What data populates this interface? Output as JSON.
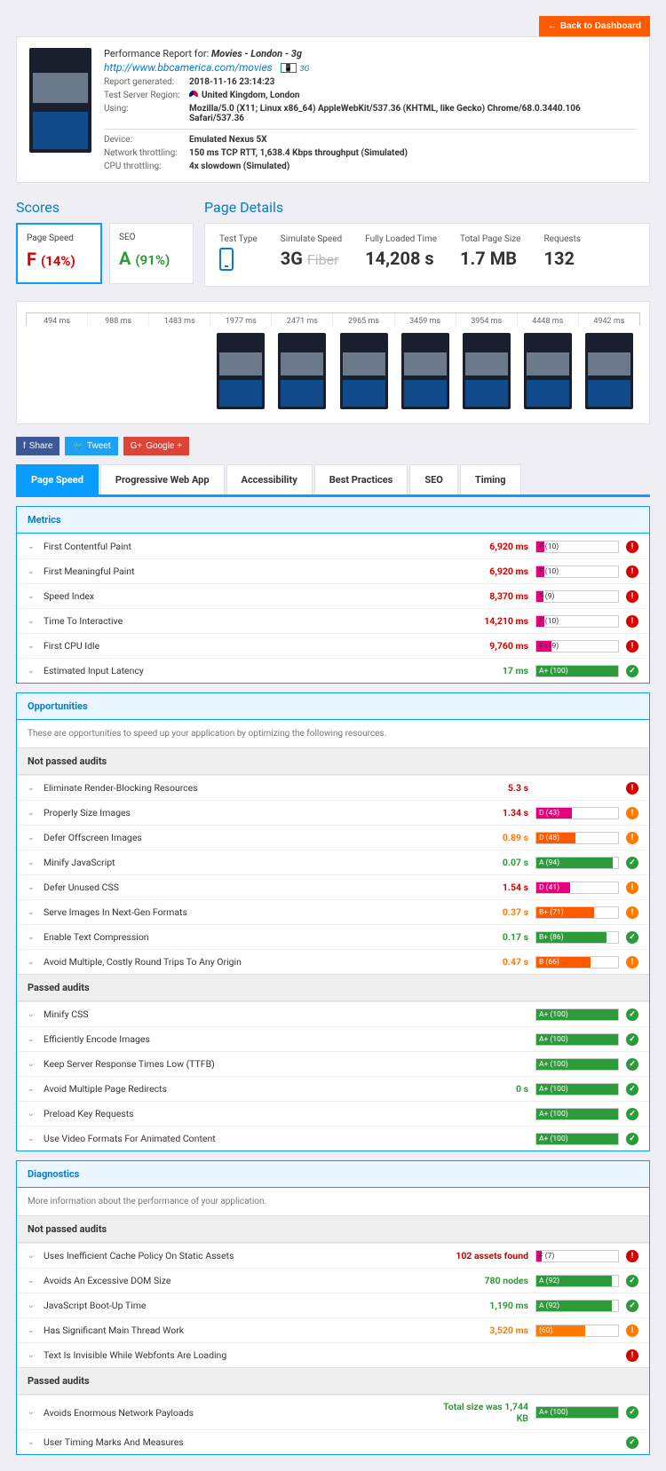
{
  "back_button": "Back to Dashboard",
  "header": {
    "title_prefix": "Performance Report for:",
    "title_name": "Movies - London - 3g",
    "url": "http://www.bbcamerica.com/movies",
    "net_badge": "3G",
    "rows1": [
      {
        "k": "Report generated:",
        "v": "2018-11-16 23:14:23"
      },
      {
        "k": "Test Server Region:",
        "v": "United Kingdom, London",
        "flag": true
      },
      {
        "k": "Using:",
        "v": "Mozilla/5.0 (X11; Linux x86_64) AppleWebKit/537.36 (KHTML, like Gecko) Chrome/68.0.3440.106 Safari/537.36"
      }
    ],
    "rows2": [
      {
        "k": "Device:",
        "v": "Emulated Nexus 5X"
      },
      {
        "k": "Network throttling:",
        "v": "150 ms TCP RTT, 1,638.4 Kbps throughput (Simulated)"
      },
      {
        "k": "CPU throttling:",
        "v": "4x slowdown (Simulated)"
      }
    ]
  },
  "scores": {
    "heading": "Scores",
    "items": [
      {
        "label": "Page Speed",
        "grade": "F",
        "pct": "(14%)",
        "cls": "grade-F",
        "active": true
      },
      {
        "label": "SEO",
        "grade": "A",
        "pct": "(91%)",
        "cls": "grade-A",
        "active": false
      }
    ]
  },
  "details": {
    "heading": "Page Details",
    "items": [
      {
        "label": "Test Type",
        "type": "phone"
      },
      {
        "label": "Simulate Speed",
        "value": "3G",
        "strike": "Fiber"
      },
      {
        "label": "Fully Loaded Time",
        "value": "14,208 s"
      },
      {
        "label": "Total Page Size",
        "value": "1.7 MB"
      },
      {
        "label": "Requests",
        "value": "132"
      }
    ]
  },
  "filmstrip": {
    "times": [
      "494 ms",
      "988 ms",
      "1483 ms",
      "1977 ms",
      "2471 ms",
      "2965 ms",
      "3459 ms",
      "3954 ms",
      "4448 ms",
      "4942 ms"
    ],
    "frames": [
      false,
      false,
      false,
      true,
      true,
      true,
      true,
      true,
      true,
      true
    ]
  },
  "social": {
    "share": "Share",
    "tweet": "Tweet",
    "google": "Google +"
  },
  "tabs": [
    "Page Speed",
    "Progressive Web App",
    "Accessibility",
    "Best Practices",
    "SEO",
    "Timing"
  ],
  "active_tab": 0,
  "metrics": {
    "title": "Metrics",
    "rows": [
      {
        "name": "First Contentful Paint",
        "val": "6,920 ms",
        "vcls": "val-red",
        "bar": {
          "label": "F (10)",
          "pct": 10,
          "color": "#e6007e"
        },
        "icon": "warn"
      },
      {
        "name": "First Meaningful Paint",
        "val": "6,920 ms",
        "vcls": "val-red",
        "bar": {
          "label": "F (10)",
          "pct": 10,
          "color": "#e6007e"
        },
        "icon": "warn"
      },
      {
        "name": "Speed Index",
        "val": "8,370 ms",
        "vcls": "val-red",
        "bar": {
          "label": "F (9)",
          "pct": 9,
          "color": "#e6007e"
        },
        "icon": "warn"
      },
      {
        "name": "Time To Interactive",
        "val": "14,210 ms",
        "vcls": "val-red",
        "bar": {
          "label": "F (10)",
          "pct": 10,
          "color": "#e6007e"
        },
        "icon": "warn"
      },
      {
        "name": "First CPU Idle",
        "val": "9,760 ms",
        "vcls": "val-red",
        "bar": {
          "label": "F (19)",
          "pct": 19,
          "color": "#e6007e"
        },
        "icon": "warn"
      },
      {
        "name": "Estimated Input Latency",
        "val": "17 ms",
        "vcls": "val-green",
        "bar": {
          "label": "A+ (100)",
          "pct": 100,
          "color": "#2e9b3a"
        },
        "icon": "ok"
      }
    ]
  },
  "opportunities": {
    "title": "Opportunities",
    "desc": "These are opportunities to speed up your application by optimizing the following resources.",
    "not_passed_title": "Not passed audits",
    "not_passed": [
      {
        "name": "Eliminate Render-Blocking Resources",
        "val": "5.3 s",
        "vcls": "val-red",
        "icon": "warn"
      },
      {
        "name": "Properly Size Images",
        "val": "1.34 s",
        "vcls": "val-red",
        "bar": {
          "label": "D (43)",
          "pct": 43,
          "color": "#e6007e"
        },
        "icon": "alert"
      },
      {
        "name": "Defer Offscreen Images",
        "val": "0.89 s",
        "vcls": "val-orange",
        "bar": {
          "label": "D (48)",
          "pct": 48,
          "color": "#ff5a00"
        },
        "icon": "alert"
      },
      {
        "name": "Minify JavaScript",
        "val": "0.07 s",
        "vcls": "val-green",
        "bar": {
          "label": "A (94)",
          "pct": 94,
          "color": "#2e9b3a"
        },
        "icon": "ok"
      },
      {
        "name": "Defer Unused CSS",
        "val": "1.54 s",
        "vcls": "val-red",
        "bar": {
          "label": "D (41)",
          "pct": 41,
          "color": "#e6007e"
        },
        "icon": "alert"
      },
      {
        "name": "Serve Images In Next-Gen Formats",
        "val": "0.37 s",
        "vcls": "val-orange",
        "bar": {
          "label": "B+ (71)",
          "pct": 71,
          "color": "#ff5a00"
        },
        "icon": "alert"
      },
      {
        "name": "Enable Text Compression",
        "val": "0.17 s",
        "vcls": "val-green",
        "bar": {
          "label": "B+ (86)",
          "pct": 86,
          "color": "#2e9b3a"
        },
        "icon": "ok"
      },
      {
        "name": "Avoid Multiple, Costly Round Trips To Any Origin",
        "val": "0.47 s",
        "vcls": "val-orange",
        "bar": {
          "label": "B (66)",
          "pct": 66,
          "color": "#ff5a00"
        },
        "icon": "alert"
      }
    ],
    "passed_title": "Passed audits",
    "passed": [
      {
        "name": "Minify CSS",
        "bar": {
          "label": "A+ (100)",
          "pct": 100,
          "color": "#2e9b3a"
        },
        "icon": "ok"
      },
      {
        "name": "Efficiently Encode Images",
        "bar": {
          "label": "A+ (100)",
          "pct": 100,
          "color": "#2e9b3a"
        },
        "icon": "ok"
      },
      {
        "name": "Keep Server Response Times Low (TTFB)",
        "bar": {
          "label": "A+ (100)",
          "pct": 100,
          "color": "#2e9b3a"
        },
        "icon": "ok"
      },
      {
        "name": "Avoid Multiple Page Redirects",
        "val": "0 s",
        "vcls": "val-green",
        "bar": {
          "label": "A+ (100)",
          "pct": 100,
          "color": "#2e9b3a"
        },
        "icon": "ok"
      },
      {
        "name": "Preload Key Requests",
        "bar": {
          "label": "A+ (100)",
          "pct": 100,
          "color": "#2e9b3a"
        },
        "icon": "ok"
      },
      {
        "name": "Use Video Formats For Animated Content",
        "bar": {
          "label": "A+ (100)",
          "pct": 100,
          "color": "#2e9b3a"
        },
        "icon": "ok"
      }
    ]
  },
  "diagnostics": {
    "title": "Diagnostics",
    "desc": "More information about the performance of your application.",
    "not_passed_title": "Not passed audits",
    "not_passed": [
      {
        "name": "Uses Inefficient Cache Policy On Static Assets",
        "val": "102 assets found",
        "vcls": "val-red",
        "bar": {
          "label": "F (7)",
          "pct": 7,
          "color": "#e6007e"
        },
        "icon": "warn"
      },
      {
        "name": "Avoids An Excessive DOM Size",
        "val": "780 nodes",
        "vcls": "val-green",
        "bar": {
          "label": "A (92)",
          "pct": 92,
          "color": "#2e9b3a"
        },
        "icon": "ok"
      },
      {
        "name": "JavaScript Boot-Up Time",
        "val": "1,190 ms",
        "vcls": "val-green",
        "bar": {
          "label": "A (92)",
          "pct": 92,
          "color": "#2e9b3a"
        },
        "icon": "ok"
      },
      {
        "name": "Has Significant Main Thread Work",
        "val": "3,520 ms",
        "vcls": "val-orange",
        "bar": {
          "label": "(60)",
          "pct": 60,
          "color": "#ff7a00"
        },
        "icon": "alert"
      },
      {
        "name": "Text Is Invisible While Webfonts Are Loading",
        "icon": "warn"
      }
    ],
    "passed_title": "Passed audits",
    "passed": [
      {
        "name": "Avoids Enormous Network Payloads",
        "val": "Total size was 1,744 KB",
        "vcls": "val-green",
        "bar": {
          "label": "A+ (100)",
          "pct": 100,
          "color": "#2e9b3a"
        },
        "icon": "ok"
      },
      {
        "name": "User Timing Marks And Measures",
        "icon": "ok"
      }
    ]
  }
}
